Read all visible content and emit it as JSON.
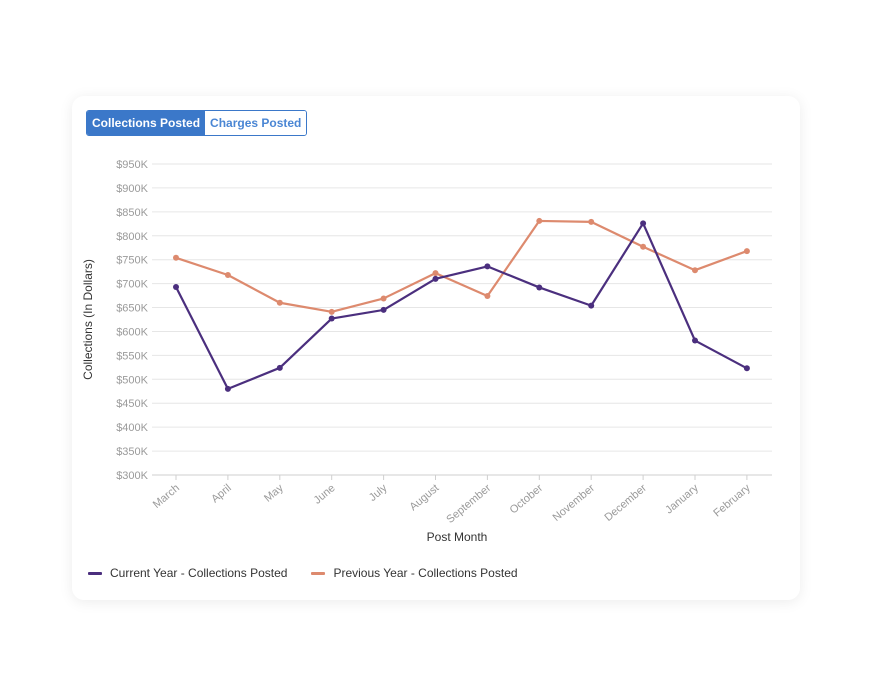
{
  "toggle": {
    "active_label": "Collections Posted",
    "inactive_label": "Charges Posted"
  },
  "colors": {
    "current": "#4b2f7e",
    "previous": "#dd8a6e",
    "grid": "#e6e6e6",
    "accent": "#3b78c9"
  },
  "chart_data": {
    "type": "line",
    "title": "",
    "xlabel": "Post Month",
    "ylabel": "Collections (In Dollars)",
    "ylim": [
      300000,
      950000
    ],
    "yticks": [
      300000,
      350000,
      400000,
      450000,
      500000,
      550000,
      600000,
      650000,
      700000,
      750000,
      800000,
      850000,
      900000,
      950000
    ],
    "ytick_labels": [
      "$300K",
      "$350K",
      "$400K",
      "$450K",
      "$500K",
      "$550K",
      "$600K",
      "$650K",
      "$700K",
      "$750K",
      "$800K",
      "$850K",
      "$900K",
      "$950K"
    ],
    "categories": [
      "March",
      "April",
      "May",
      "June",
      "July",
      "August",
      "September",
      "October",
      "November",
      "December",
      "January",
      "February"
    ],
    "grid": true,
    "legend_position": "bottom-left",
    "series": [
      {
        "name": "Current Year - Collections Posted",
        "values": [
          693000,
          480000,
          524000,
          627000,
          645000,
          710000,
          736000,
          692000,
          654000,
          826000,
          581000,
          523000
        ]
      },
      {
        "name": "Previous Year - Collections Posted",
        "values": [
          754000,
          718000,
          660000,
          641000,
          669000,
          722000,
          674000,
          831000,
          829000,
          777000,
          728000,
          768000
        ]
      }
    ]
  }
}
